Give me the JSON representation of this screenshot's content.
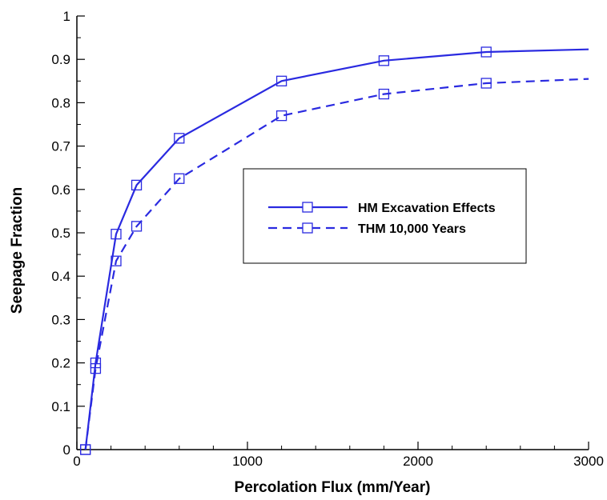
{
  "chart_data": {
    "type": "line",
    "title": "",
    "xlabel": "Percolation Flux  (mm/Year)",
    "ylabel": "Seepage Fraction",
    "xlim": [
      0,
      3000
    ],
    "ylim": [
      0,
      1
    ],
    "x_ticks": [
      0,
      1000,
      2000,
      3000
    ],
    "x_tick_labels": [
      "0",
      "1000",
      "2000",
      "3000"
    ],
    "y_ticks": [
      0,
      0.1,
      0.2,
      0.3,
      0.4,
      0.5,
      0.6,
      0.7,
      0.8,
      0.9,
      1
    ],
    "y_tick_labels": [
      "0",
      "0.1",
      "0.2",
      "0.3",
      "0.4",
      "0.5",
      "0.6",
      "0.7",
      "0.8",
      "0.9",
      "1"
    ],
    "grid": false,
    "legend_position": "center-right",
    "series": [
      {
        "name": "HM Excavation Effects",
        "style": "solid",
        "color": "#2a2ae0",
        "x": [
          50,
          110,
          230,
          350,
          600,
          1200,
          1800,
          2400,
          3000
        ],
        "y": [
          0.0,
          0.2,
          0.497,
          0.61,
          0.718,
          0.85,
          0.897,
          0.917,
          0.923
        ],
        "markers": [
          true,
          true,
          true,
          true,
          true,
          true,
          true,
          true,
          false
        ]
      },
      {
        "name": "THM 10,000 Years",
        "style": "dashed",
        "color": "#2a2ae0",
        "x": [
          50,
          110,
          230,
          350,
          600,
          1200,
          1800,
          2400,
          3000
        ],
        "y": [
          0.0,
          0.187,
          0.435,
          0.515,
          0.625,
          0.77,
          0.82,
          0.845,
          0.855
        ],
        "markers": [
          true,
          true,
          true,
          true,
          true,
          true,
          true,
          true,
          false
        ]
      }
    ]
  }
}
